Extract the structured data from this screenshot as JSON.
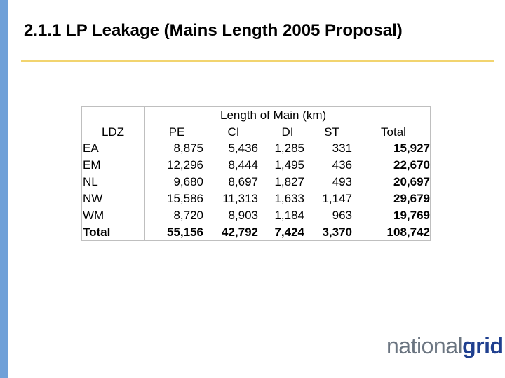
{
  "title": "2.1.1   LP Leakage (Mains Length 2005 Proposal)",
  "table": {
    "group_header": "Length of Main (km)",
    "headers": [
      "LDZ",
      "PE",
      "CI",
      "DI",
      "ST",
      "Total"
    ],
    "rows": [
      {
        "ldz": "EA",
        "pe": "8,875",
        "ci": "5,436",
        "di": "1,285",
        "st": "331",
        "total": "15,927"
      },
      {
        "ldz": "EM",
        "pe": "12,296",
        "ci": "8,444",
        "di": "1,495",
        "st": "436",
        "total": "22,670"
      },
      {
        "ldz": "NL",
        "pe": "9,680",
        "ci": "8,697",
        "di": "1,827",
        "st": "493",
        "total": "20,697"
      },
      {
        "ldz": "NW",
        "pe": "15,586",
        "ci": "11,313",
        "di": "1,633",
        "st": "1,147",
        "total": "29,679"
      },
      {
        "ldz": "WM",
        "pe": "8,720",
        "ci": "8,903",
        "di": "1,184",
        "st": "963",
        "total": "19,769"
      },
      {
        "ldz": "Total",
        "pe": "55,156",
        "ci": "42,792",
        "di": "7,424",
        "st": "3,370",
        "total": "108,742"
      }
    ]
  },
  "logo": {
    "part1": "national",
    "part2": "grid"
  },
  "colors": {
    "left_bar": "#6fa0d8",
    "title_rule": "#f2d46f",
    "logo_grey": "#6a7480",
    "logo_blue": "#1f3f8f"
  }
}
